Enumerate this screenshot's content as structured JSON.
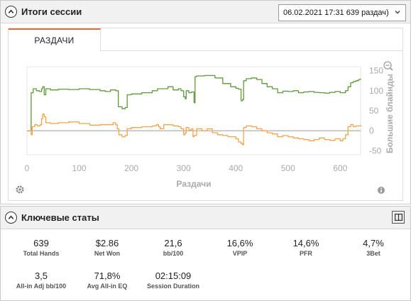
{
  "session": {
    "title": "Итоги сессии",
    "selector_value": "06.02.2021 17:31 639 раздач)"
  },
  "tabs": [
    {
      "label": "РАЗДАЧИ"
    }
  ],
  "chart_data": {
    "type": "line",
    "xlabel": "Раздачи",
    "ylabel": "Большие блайнды",
    "xlim": [
      0,
      639
    ],
    "ylim": [
      -60,
      160
    ],
    "x_ticks": [
      "0",
      "100",
      "200",
      "300",
      "400",
      "500",
      "600"
    ],
    "y_ticks": [
      "150",
      "100",
      "50",
      "0",
      "-50"
    ],
    "grid": false,
    "series": [
      {
        "color": "#5d9a3a",
        "points": [
          [
            0,
            0
          ],
          [
            5,
            0
          ],
          [
            8,
            95
          ],
          [
            12,
            105
          ],
          [
            18,
            100
          ],
          [
            24,
            98
          ],
          [
            28,
            105
          ],
          [
            30,
            110
          ],
          [
            33,
            90
          ],
          [
            36,
            105
          ],
          [
            45,
            102
          ],
          [
            60,
            104
          ],
          [
            80,
            103
          ],
          [
            100,
            105
          ],
          [
            120,
            103
          ],
          [
            140,
            100
          ],
          [
            150,
            98
          ],
          [
            160,
            102
          ],
          [
            170,
            100
          ],
          [
            175,
            60
          ],
          [
            182,
            55
          ],
          [
            188,
            58
          ],
          [
            192,
            90
          ],
          [
            200,
            92
          ],
          [
            220,
            95
          ],
          [
            240,
            100
          ],
          [
            250,
            105
          ],
          [
            270,
            110
          ],
          [
            280,
            102
          ],
          [
            290,
            105
          ],
          [
            295,
            100
          ],
          [
            300,
            85
          ],
          [
            303,
            80
          ],
          [
            305,
            100
          ],
          [
            310,
            95
          ],
          [
            315,
            97
          ],
          [
            320,
            70
          ],
          [
            322,
            135
          ],
          [
            325,
            137
          ],
          [
            340,
            138
          ],
          [
            360,
            132
          ],
          [
            375,
            118
          ],
          [
            390,
            110
          ],
          [
            400,
            106
          ],
          [
            405,
            104
          ],
          [
            410,
            75
          ],
          [
            413,
            78
          ],
          [
            415,
            125
          ],
          [
            420,
            130
          ],
          [
            430,
            132
          ],
          [
            440,
            128
          ],
          [
            450,
            118
          ],
          [
            460,
            110
          ],
          [
            470,
            105
          ],
          [
            480,
            95
          ],
          [
            490,
            99
          ],
          [
            500,
            98
          ],
          [
            510,
            100
          ],
          [
            520,
            95
          ],
          [
            530,
            97
          ],
          [
            540,
            98
          ],
          [
            550,
            96
          ],
          [
            560,
            95
          ],
          [
            570,
            94
          ],
          [
            580,
            96
          ],
          [
            590,
            98
          ],
          [
            600,
            95
          ],
          [
            610,
            100
          ],
          [
            615,
            110
          ],
          [
            620,
            120
          ],
          [
            625,
            123
          ],
          [
            630,
            125
          ],
          [
            635,
            128
          ],
          [
            639,
            130
          ]
        ]
      },
      {
        "color": "#f5a347",
        "points": [
          [
            0,
            0
          ],
          [
            5,
            0
          ],
          [
            8,
            -10
          ],
          [
            10,
            10
          ],
          [
            15,
            15
          ],
          [
            20,
            12
          ],
          [
            25,
            15
          ],
          [
            28,
            30
          ],
          [
            30,
            42
          ],
          [
            33,
            35
          ],
          [
            36,
            20
          ],
          [
            45,
            18
          ],
          [
            60,
            20
          ],
          [
            80,
            22
          ],
          [
            100,
            18
          ],
          [
            120,
            14
          ],
          [
            140,
            15
          ],
          [
            155,
            15
          ],
          [
            165,
            20
          ],
          [
            170,
            15
          ],
          [
            173,
            5
          ],
          [
            176,
            -10
          ],
          [
            182,
            -15
          ],
          [
            188,
            -12
          ],
          [
            192,
            5
          ],
          [
            200,
            8
          ],
          [
            220,
            10
          ],
          [
            240,
            12
          ],
          [
            248,
            15
          ],
          [
            252,
            10
          ],
          [
            255,
            5
          ],
          [
            262,
            15
          ],
          [
            280,
            12
          ],
          [
            290,
            10
          ],
          [
            295,
            5
          ],
          [
            300,
            -10
          ],
          [
            303,
            -5
          ],
          [
            305,
            8
          ],
          [
            310,
            2
          ],
          [
            315,
            5
          ],
          [
            318,
            -15
          ],
          [
            320,
            -12
          ],
          [
            325,
            5
          ],
          [
            335,
            0
          ],
          [
            345,
            5
          ],
          [
            355,
            -5
          ],
          [
            365,
            -10
          ],
          [
            375,
            -12
          ],
          [
            385,
            -15
          ],
          [
            400,
            -20
          ],
          [
            405,
            -28
          ],
          [
            410,
            -32
          ],
          [
            413,
            -35
          ],
          [
            415,
            8
          ],
          [
            420,
            12
          ],
          [
            430,
            10
          ],
          [
            440,
            5
          ],
          [
            450,
            0
          ],
          [
            460,
            -5
          ],
          [
            470,
            -8
          ],
          [
            480,
            -15
          ],
          [
            490,
            -12
          ],
          [
            500,
            -15
          ],
          [
            510,
            -18
          ],
          [
            520,
            -20
          ],
          [
            530,
            -22
          ],
          [
            540,
            -25
          ],
          [
            550,
            -22
          ],
          [
            560,
            -18
          ],
          [
            570,
            -22
          ],
          [
            580,
            -24
          ],
          [
            590,
            -20
          ],
          [
            600,
            -25
          ],
          [
            605,
            -20
          ],
          [
            610,
            -10
          ],
          [
            615,
            10
          ],
          [
            620,
            15
          ],
          [
            625,
            10
          ],
          [
            630,
            12
          ],
          [
            639,
            15
          ]
        ]
      }
    ]
  },
  "key_stats": {
    "title": "Ключевые статы",
    "items": [
      {
        "value": "639",
        "label": "Total Hands"
      },
      {
        "value": "$2.86",
        "label": "Net Won"
      },
      {
        "value": "21,6",
        "label": "bb/100"
      },
      {
        "value": "16,6%",
        "label": "VPIP"
      },
      {
        "value": "14,6%",
        "label": "PFR"
      },
      {
        "value": "4,7%",
        "label": "3Bet"
      },
      {
        "value": "3,5",
        "label": "All-in Adj bb/100"
      },
      {
        "value": "71,8%",
        "label": "Avg All-in EQ"
      },
      {
        "value": "02:15:09",
        "label": "Session Duration"
      }
    ]
  },
  "icons": {
    "collapse": "chevron-up-icon",
    "dropdown": "chevron-down-icon",
    "zoom": "zoom-out-icon",
    "settings": "gear-icon",
    "info": "info-icon",
    "layout": "layout-toggle-icon"
  }
}
